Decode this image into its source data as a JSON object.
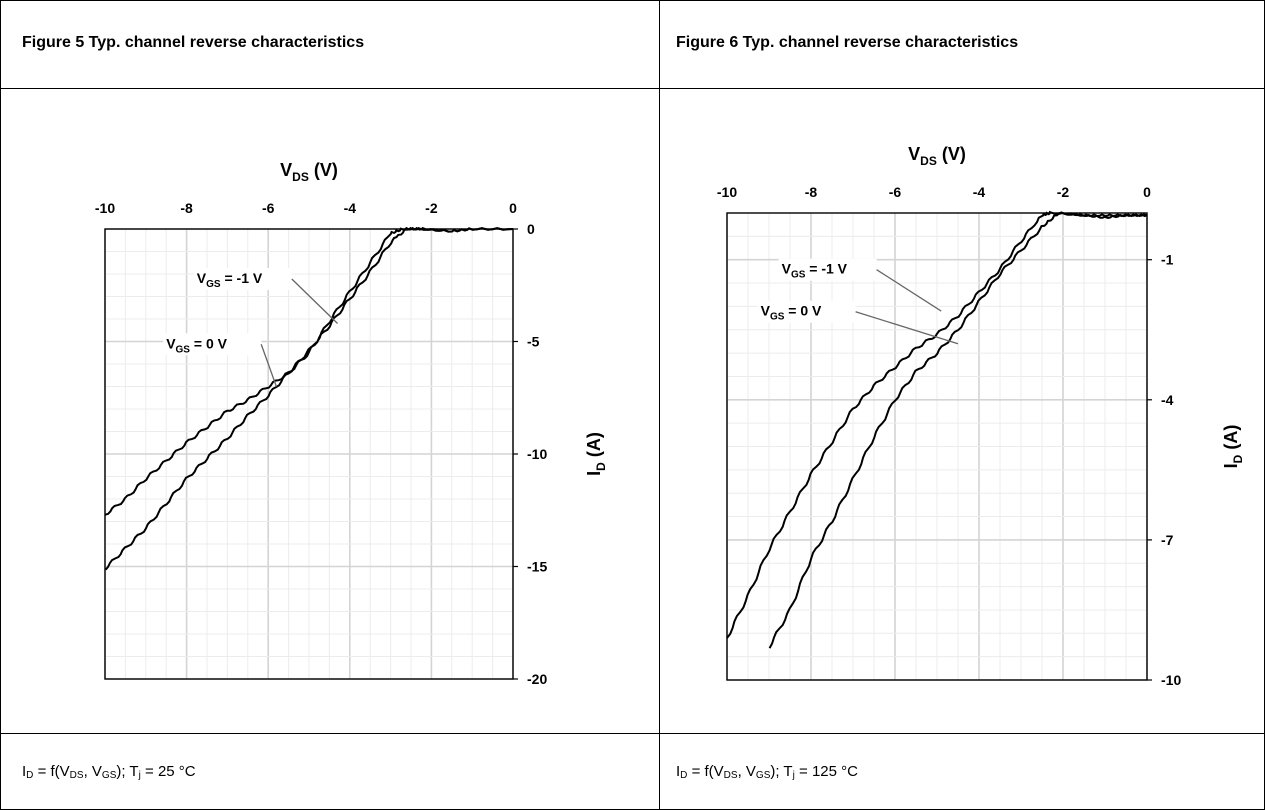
{
  "figures": [
    {
      "title": "Figure 5 Typ. channel reverse characteristics",
      "caption": {
        "i": "I",
        "i_sub": "D",
        "eq": " = f(V",
        "v_sub": "DS",
        "mid": ", V",
        "gs_sub": "GS",
        "tail": "); T",
        "t_sub": "j",
        "cond": " = 25 °C"
      }
    },
    {
      "title": "Figure 6 Typ. channel reverse characteristics",
      "caption": {
        "i": "I",
        "i_sub": "D",
        "eq": " = f(V",
        "v_sub": "DS",
        "mid": ", V",
        "gs_sub": "GS",
        "tail": "); T",
        "t_sub": "j",
        "cond": " = 125 °C"
      }
    }
  ],
  "chart_data": [
    {
      "type": "line",
      "xlabel": "V_DS (V)",
      "ylabel": "I_D (A)",
      "xlim": [
        -10,
        0
      ],
      "ylim": [
        -20,
        0
      ],
      "x_ticks": [
        -10,
        -8,
        -6,
        -4,
        -2,
        0
      ],
      "y_ticks": [
        0,
        -5,
        -10,
        -15,
        -20
      ],
      "grid": true,
      "series": [
        {
          "name": "V_GS = -1 V",
          "x": [
            -10,
            -9.5,
            -9,
            -8.5,
            -8,
            -7.5,
            -7,
            -6.5,
            -6,
            -5.5,
            -5,
            -4.5,
            -4,
            -3.5,
            -3,
            -2.7,
            -2.3,
            -1.5,
            -1,
            0
          ],
          "y": [
            -12.7,
            -12.0,
            -11.1,
            -10.3,
            -9.5,
            -8.8,
            -8.1,
            -7.6,
            -7.0,
            -6.4,
            -5.5,
            -4.1,
            -2.8,
            -1.5,
            -0.2,
            0,
            0,
            -0.1,
            0,
            0
          ]
        },
        {
          "name": "V_GS = 0 V",
          "x": [
            -10,
            -9.5,
            -9,
            -8.5,
            -8,
            -7.5,
            -7,
            -6.5,
            -6,
            -5.5,
            -5,
            -4.5,
            -4,
            -3.5,
            -3,
            -2.6,
            -2.2,
            -1.5,
            -1,
            0
          ],
          "y": [
            -15.1,
            -14.2,
            -13.3,
            -12.2,
            -11.1,
            -10.2,
            -9.3,
            -8.3,
            -7.4,
            -6.4,
            -5.4,
            -4.3,
            -3.1,
            -1.9,
            -0.6,
            0,
            0,
            -0.1,
            0,
            0
          ]
        }
      ],
      "annotations": [
        {
          "text": "V_GS = -1 V",
          "label": "V",
          "sub": "GS",
          "rest": " = -1 V",
          "points_to": [
            -4.3,
            -4.2
          ],
          "text_at": [
            -7.75,
            -2.4
          ]
        },
        {
          "text": "V_GS = 0 V",
          "label": "V",
          "sub": "GS",
          "rest": " = 0 V",
          "points_to": [
            -5.8,
            -7.0
          ],
          "text_at": [
            -8.5,
            -5.3
          ]
        }
      ]
    },
    {
      "type": "line",
      "xlabel": "V_DS (V)",
      "ylabel": "I_D (A)",
      "xlim": [
        -10,
        0
      ],
      "ylim": [
        -10,
        0
      ],
      "x_ticks": [
        -10,
        -8,
        -6,
        -4,
        -2,
        0
      ],
      "y_ticks": [
        -1,
        -4,
        -7,
        -10
      ],
      "grid": true,
      "series": [
        {
          "name": "V_GS = -1 V",
          "x": [
            -10,
            -9.5,
            -9,
            -8.5,
            -8,
            -7.5,
            -7,
            -6.5,
            -6,
            -5.5,
            -5,
            -4.5,
            -4,
            -3.5,
            -3,
            -2.5,
            -2.3,
            -1.5,
            -1,
            -0.5,
            0
          ],
          "y": [
            -9.1,
            -8.2,
            -7.2,
            -6.4,
            -5.6,
            -4.9,
            -4.2,
            -3.7,
            -3.3,
            -2.9,
            -2.6,
            -2.2,
            -1.7,
            -1.2,
            -0.6,
            -0.05,
            0,
            -0.05,
            -0.05,
            -0.05,
            -0.05
          ]
        },
        {
          "name": "V_GS = 0 V",
          "x": [
            -9,
            -8.5,
            -8,
            -7.5,
            -7,
            -6.5,
            -6,
            -5.5,
            -5,
            -4.5,
            -4,
            -3.5,
            -3,
            -2.5,
            -2.1,
            -1.5,
            -1,
            -0.5,
            0
          ],
          "y": [
            -9.3,
            -8.5,
            -7.4,
            -6.6,
            -5.7,
            -4.8,
            -4.0,
            -3.4,
            -3.0,
            -2.5,
            -1.9,
            -1.3,
            -0.8,
            -0.3,
            0,
            -0.05,
            -0.1,
            -0.05,
            -0.05
          ]
        }
      ],
      "annotations": [
        {
          "text": "V_GS = -1 V",
          "label": "V",
          "sub": "GS",
          "rest": " = -1 V",
          "points_to": [
            -4.9,
            -2.1
          ],
          "text_at": [
            -8.7,
            -1.3
          ]
        },
        {
          "text": "V_GS = 0 V",
          "label": "V",
          "sub": "GS",
          "rest": " = 0 V",
          "points_to": [
            -4.5,
            -2.8
          ],
          "text_at": [
            -9.2,
            -2.2
          ]
        }
      ]
    }
  ]
}
